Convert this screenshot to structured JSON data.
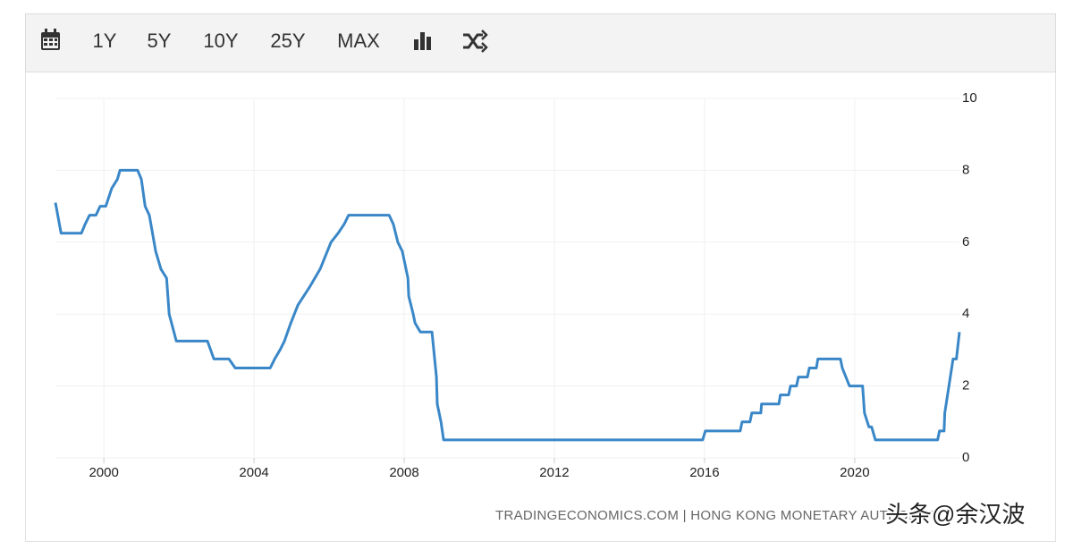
{
  "toolbar": {
    "buttons": [
      "1Y",
      "5Y",
      "10Y",
      "25Y",
      "MAX"
    ]
  },
  "chart_data": {
    "type": "line",
    "x": [
      1998.71,
      1998.86,
      1999.4,
      1999.5,
      1999.62,
      1999.79,
      1999.9,
      2000.05,
      2000.21,
      2000.36,
      2000.43,
      2000.9,
      2001.0,
      2001.1,
      2001.21,
      2001.38,
      2001.52,
      2001.67,
      2001.74,
      2001.93,
      2002.76,
      2002.93,
      2003.33,
      2003.5,
      2004.43,
      2004.55,
      2004.69,
      2004.81,
      2004.98,
      2005.17,
      2005.48,
      2005.76,
      2006.05,
      2006.24,
      2006.4,
      2006.52,
      2007.6,
      2007.71,
      2007.83,
      2007.95,
      2008.1,
      2008.12,
      2008.24,
      2008.29,
      2008.43,
      2008.74,
      2008.86,
      2008.88,
      2008.98,
      2009.05,
      2015.95,
      2016.02,
      2016.95,
      2017.0,
      2017.21,
      2017.26,
      2017.5,
      2017.52,
      2017.98,
      2018.02,
      2018.24,
      2018.29,
      2018.45,
      2018.5,
      2018.74,
      2018.79,
      2018.98,
      2019.02,
      2019.62,
      2019.67,
      2019.86,
      2020.21,
      2020.26,
      2020.38,
      2020.45,
      2020.55,
      2022.21,
      2022.26,
      2022.38,
      2022.4,
      2022.62,
      2022.71,
      2022.79
    ],
    "values": [
      7.1,
      6.25,
      6.25,
      6.5,
      6.75,
      6.75,
      7.0,
      7.0,
      7.5,
      7.75,
      8.0,
      8.0,
      7.75,
      7.0,
      6.75,
      5.75,
      5.25,
      5.0,
      4.0,
      3.25,
      3.25,
      2.75,
      2.75,
      2.5,
      2.5,
      2.75,
      3.0,
      3.25,
      3.75,
      4.25,
      4.75,
      5.25,
      6.0,
      6.25,
      6.5,
      6.75,
      6.75,
      6.5,
      6.0,
      5.75,
      5.0,
      4.5,
      4.0,
      3.75,
      3.5,
      3.5,
      2.25,
      1.5,
      1.0,
      0.5,
      0.5,
      0.75,
      0.75,
      1.0,
      1.0,
      1.25,
      1.25,
      1.5,
      1.5,
      1.75,
      1.75,
      2.0,
      2.0,
      2.25,
      2.25,
      2.5,
      2.5,
      2.75,
      2.75,
      2.5,
      2.0,
      2.0,
      1.25,
      0.86,
      0.86,
      0.5,
      0.5,
      0.75,
      0.75,
      1.25,
      2.75,
      2.75,
      3.5
    ],
    "color": "#3a87c8",
    "xlim": [
      1998.71,
      2022.79
    ],
    "xticks": [
      2000,
      2004,
      2008,
      2012,
      2016,
      2020
    ],
    "ylim": [
      0,
      10
    ],
    "yticks": [
      0,
      2,
      4,
      6,
      8,
      10
    ],
    "grid": true,
    "source": "TRADINGECONOMICS.COM | HONG KONG MONETARY AUTHORITY",
    "watermark": "头条@余汉波"
  }
}
